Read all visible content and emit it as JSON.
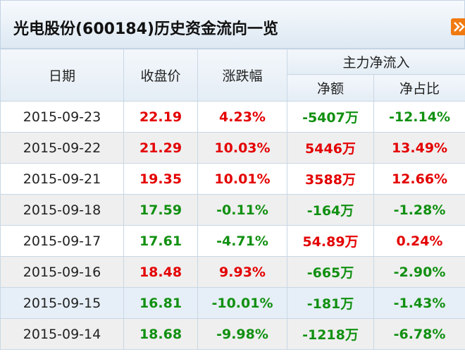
{
  "header": {
    "title": "光电股份(600184)历史资金流向一览"
  },
  "table": {
    "headers": [
      "日期",
      "收盘价",
      "涨跌幅",
      "主力净流入"
    ],
    "subheaders": [
      "净额",
      "净占比"
    ],
    "rows": [
      [
        "2015-09-23",
        "22.19",
        "4.23%",
        "-5407万",
        "-12.14%"
      ],
      [
        "2015-09-22",
        "21.29",
        "10.03%",
        "5446万",
        "13.49%"
      ],
      [
        "2015-09-21",
        "19.35",
        "10.01%",
        "3588万",
        "12.66%"
      ],
      [
        "2015-09-18",
        "17.59",
        "-0.11%",
        "-164万",
        "-1.28%"
      ],
      [
        "2015-09-17",
        "17.61",
        "-4.71%",
        "54.89万",
        "0.24%"
      ],
      [
        "2015-09-16",
        "18.48",
        "9.93%",
        "-665万",
        "-2.90%"
      ],
      [
        "2015-09-15",
        "16.81",
        "-10.01%",
        "-181万",
        "-1.43%"
      ],
      [
        "2015-09-14",
        "18.68",
        "-9.98%",
        "-1218万",
        "-6.78%"
      ]
    ]
  }
}
